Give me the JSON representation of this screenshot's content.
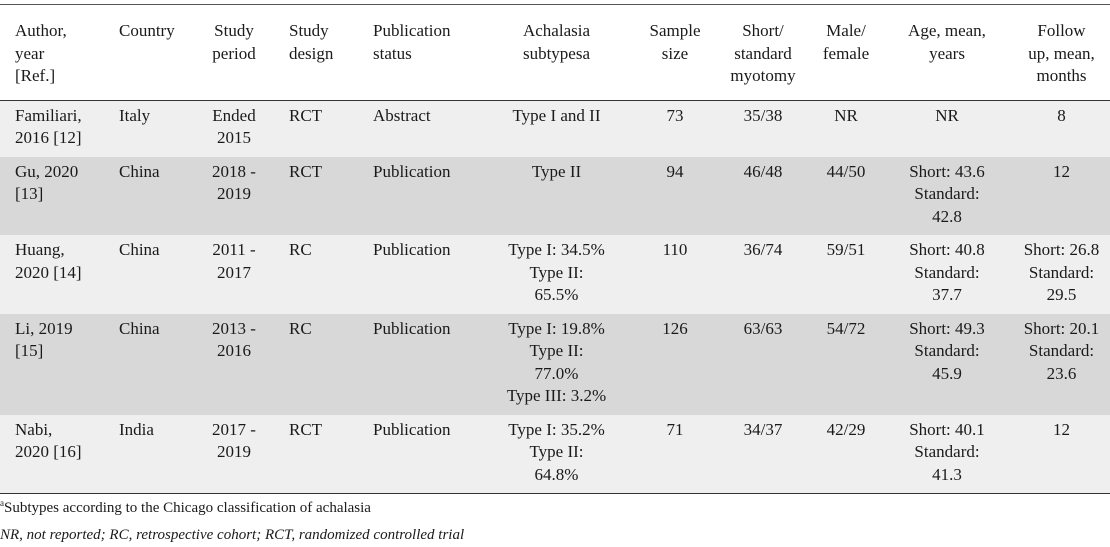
{
  "columns": [
    [
      "Author,",
      "year",
      "[Ref.]"
    ],
    [
      "Country"
    ],
    [
      "Study",
      "period"
    ],
    [
      "Study",
      "design"
    ],
    [
      "Publication",
      "status"
    ],
    [
      "Achalasia",
      "subtypesa"
    ],
    [
      "Sample",
      "size"
    ],
    [
      "Short/",
      "standard",
      "myotomy"
    ],
    [
      "Male/",
      "female"
    ],
    [
      "Age, mean,",
      "years"
    ],
    [
      "Follow",
      "up, mean,",
      "months"
    ]
  ],
  "rows": [
    {
      "author": [
        "Familiari,",
        "2016 [12]"
      ],
      "country": "Italy",
      "period": [
        "Ended",
        "2015"
      ],
      "design": "RCT",
      "status": "Abstract",
      "subtypes": [
        "Type I and II"
      ],
      "sample": "73",
      "myotomy": "35/38",
      "sex": "NR",
      "age": [
        "NR"
      ],
      "follow": [
        "8"
      ]
    },
    {
      "author": [
        "Gu, 2020",
        "[13]"
      ],
      "country": "China",
      "period": [
        "2018 -",
        "2019"
      ],
      "design": "RCT",
      "status": "Publication",
      "subtypes": [
        "Type II"
      ],
      "sample": "94",
      "myotomy": "46/48",
      "sex": "44/50",
      "age": [
        "Short: 43.6",
        "Standard:",
        "42.8"
      ],
      "follow": [
        "12"
      ]
    },
    {
      "author": [
        "Huang,",
        "2020 [14]"
      ],
      "country": "China",
      "period": [
        "2011 -",
        "2017"
      ],
      "design": "RC",
      "status": "Publication",
      "subtypes": [
        "Type I: 34.5%",
        "Type II:",
        "65.5%"
      ],
      "sample": "110",
      "myotomy": "36/74",
      "sex": "59/51",
      "age": [
        "Short: 40.8",
        "Standard:",
        "37.7"
      ],
      "follow": [
        "Short: 26.8",
        "Standard:",
        "29.5"
      ]
    },
    {
      "author": [
        "Li, 2019",
        "[15]"
      ],
      "country": "China",
      "period": [
        "2013 -",
        "2016"
      ],
      "design": "RC",
      "status": "Publication",
      "subtypes": [
        "Type I: 19.8%",
        "Type II:",
        "77.0%",
        "Type III: 3.2%"
      ],
      "sample": "126",
      "myotomy": "63/63",
      "sex": "54/72",
      "age": [
        "Short: 49.3",
        "Standard:",
        "45.9"
      ],
      "follow": [
        "Short: 20.1",
        "Standard:",
        "23.6"
      ]
    },
    {
      "author": [
        "Nabi,",
        "2020 [16]"
      ],
      "country": "India",
      "period": [
        "2017 -",
        "2019"
      ],
      "design": "RCT",
      "status": "Publication",
      "subtypes": [
        "Type I: 35.2%",
        "Type II:",
        "64.8%"
      ],
      "sample": "71",
      "myotomy": "34/37",
      "sex": "42/29",
      "age": [
        "Short: 40.1",
        "Standard:",
        "41.3"
      ],
      "follow": [
        "12"
      ]
    }
  ],
  "footnotes": {
    "superscript": "a",
    "subtype_note": "Subtypes according to the Chicago classification of achalasia",
    "abbreviations": "NR, not reported; RC, retrospective cohort; RCT, randomized controlled trial"
  }
}
